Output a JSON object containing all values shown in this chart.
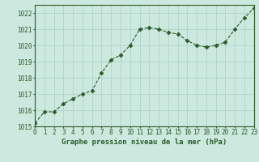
{
  "x": [
    0,
    1,
    2,
    3,
    4,
    5,
    6,
    7,
    8,
    9,
    10,
    11,
    12,
    13,
    14,
    15,
    16,
    17,
    18,
    19,
    20,
    21,
    22,
    23
  ],
  "y": [
    1015.2,
    1015.9,
    1015.9,
    1016.4,
    1016.7,
    1017.0,
    1017.2,
    1018.3,
    1019.1,
    1019.4,
    1020.0,
    1021.0,
    1021.1,
    1021.0,
    1020.8,
    1020.7,
    1020.3,
    1020.0,
    1019.9,
    1020.0,
    1020.2,
    1021.0,
    1021.7,
    1022.3
  ],
  "line_color": "#2d5a27",
  "marker": "D",
  "marker_size": 2.5,
  "bg_color": "#cce8df",
  "grid_color": "#aed4c8",
  "xlabel": "Graphe pression niveau de la mer (hPa)",
  "xlabel_color": "#2d5a27",
  "tick_color": "#2d5a27",
  "ylim": [
    1015,
    1022.5
  ],
  "xlim": [
    0,
    23
  ],
  "yticks": [
    1015,
    1016,
    1017,
    1018,
    1019,
    1020,
    1021,
    1022
  ],
  "xticks": [
    0,
    1,
    2,
    3,
    4,
    5,
    6,
    7,
    8,
    9,
    10,
    11,
    12,
    13,
    14,
    15,
    16,
    17,
    18,
    19,
    20,
    21,
    22,
    23
  ],
  "xtick_labels": [
    "0",
    "1",
    "2",
    "3",
    "4",
    "5",
    "6",
    "7",
    "8",
    "9",
    "10",
    "11",
    "12",
    "13",
    "14",
    "15",
    "16",
    "17",
    "18",
    "19",
    "20",
    "21",
    "22",
    "23"
  ],
  "tick_fontsize": 5.5,
  "xlabel_fontsize": 6.5
}
